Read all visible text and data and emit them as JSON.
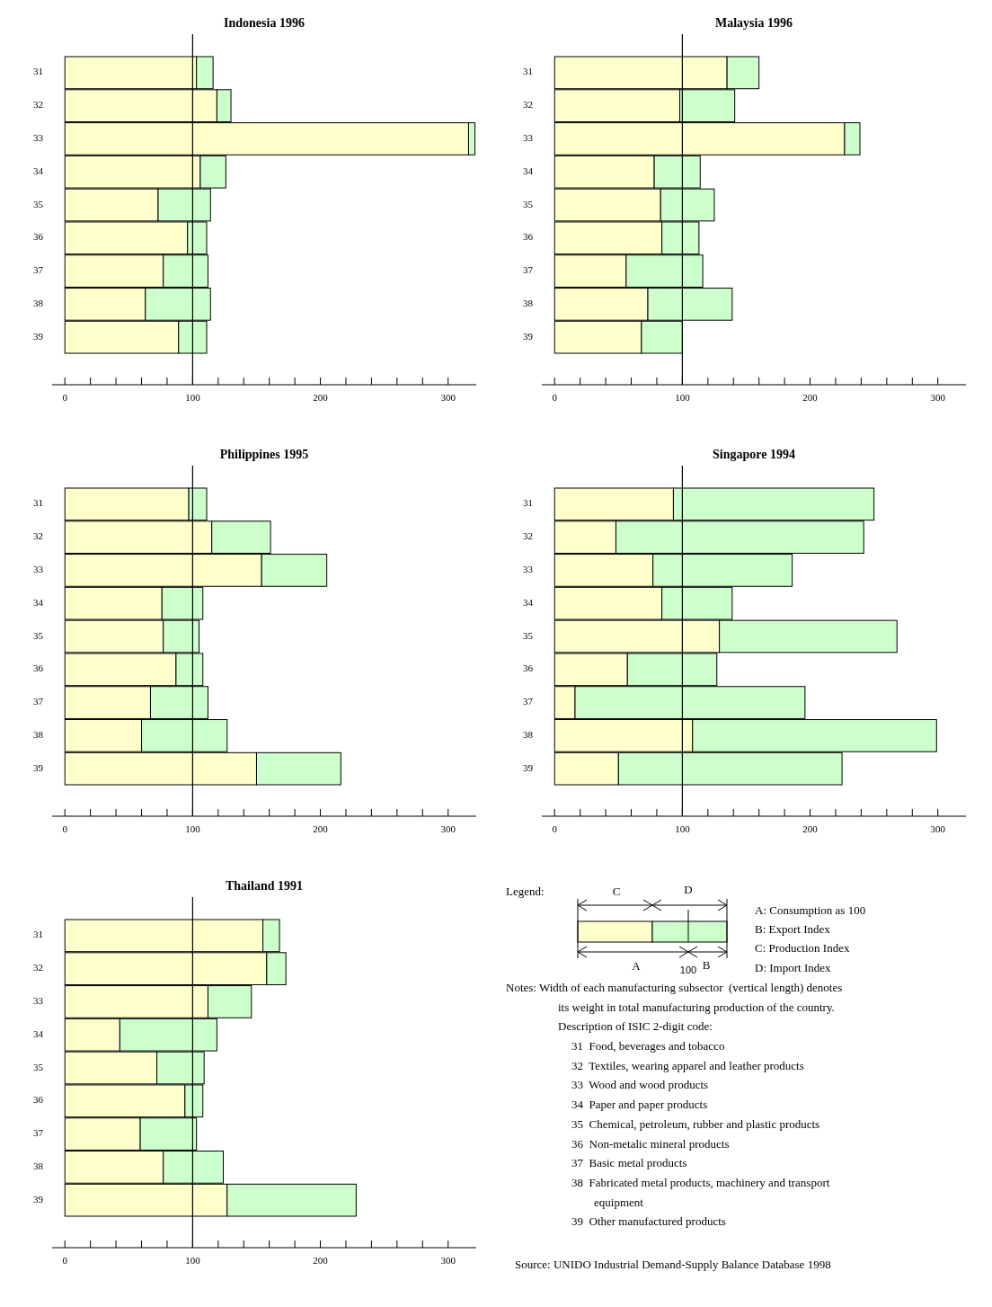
{
  "chart_data": [
    {
      "type": "bar",
      "title": "Indonesia 1996",
      "orientation": "horizontal",
      "stacked": true,
      "categories": [
        "31",
        "32",
        "33",
        "34",
        "35",
        "36",
        "37",
        "38",
        "39"
      ],
      "series": [
        {
          "color": "#ffffcc",
          "values": [
            103,
            119,
            316,
            106,
            73,
            96,
            77,
            63,
            89
          ]
        },
        {
          "color": "#ccffcc",
          "values": [
            13,
            11,
            5,
            20,
            41,
            15,
            35,
            51,
            22
          ]
        }
      ],
      "xlim": [
        -10,
        322
      ],
      "xticks": [
        0,
        {
          "value": 20,
          "label": null
        },
        {
          "value": 40,
          "label": null
        },
        {
          "value": 60,
          "label": null
        },
        {
          "value": 80,
          "label": null
        },
        100,
        {
          "value": 120,
          "label": null
        },
        {
          "value": 140,
          "label": null
        },
        {
          "value": 160,
          "label": null
        },
        {
          "value": 180,
          "label": null
        },
        200,
        {
          "value": 220,
          "label": null
        },
        {
          "value": 240,
          "label": null
        },
        {
          "value": 260,
          "label": null
        },
        {
          "value": 280,
          "label": null
        },
        300
      ],
      "ref_lines": [
        {
          "axis": "x",
          "value": 100
        }
      ]
    },
    {
      "type": "bar",
      "title": "Malaysia 1996",
      "orientation": "horizontal",
      "stacked": true,
      "categories": [
        "31",
        "32",
        "33",
        "34",
        "35",
        "36",
        "37",
        "38",
        "39"
      ],
      "series": [
        {
          "color": "#ffffcc",
          "values": [
            135,
            98,
            227,
            78,
            83,
            84,
            56,
            73,
            68
          ]
        },
        {
          "color": "#ccffcc",
          "values": [
            25,
            43,
            12,
            36,
            42,
            29,
            60,
            66,
            32
          ]
        }
      ],
      "xlim": [
        -10,
        322
      ],
      "xticks": [
        0,
        {
          "value": 20,
          "label": null
        },
        {
          "value": 40,
          "label": null
        },
        {
          "value": 60,
          "label": null
        },
        {
          "value": 80,
          "label": null
        },
        100,
        {
          "value": 120,
          "label": null
        },
        {
          "value": 140,
          "label": null
        },
        {
          "value": 160,
          "label": null
        },
        {
          "value": 180,
          "label": null
        },
        200,
        {
          "value": 220,
          "label": null
        },
        {
          "value": 240,
          "label": null
        },
        {
          "value": 260,
          "label": null
        },
        {
          "value": 280,
          "label": null
        },
        300
      ],
      "ref_lines": [
        {
          "axis": "x",
          "value": 100
        }
      ]
    },
    {
      "type": "bar",
      "title": "Philippines 1995",
      "orientation": "horizontal",
      "stacked": true,
      "categories": [
        "31",
        "32",
        "33",
        "34",
        "35",
        "36",
        "37",
        "38",
        "39"
      ],
      "series": [
        {
          "color": "#ffffcc",
          "values": [
            97,
            115,
            154,
            76,
            77,
            87,
            67,
            60,
            150
          ]
        },
        {
          "color": "#ccffcc",
          "values": [
            14,
            46,
            51,
            32,
            28,
            21,
            45,
            67,
            66
          ]
        }
      ],
      "xlim": [
        -10,
        322
      ],
      "xticks": [
        0,
        {
          "value": 20,
          "label": null
        },
        {
          "value": 40,
          "label": null
        },
        {
          "value": 60,
          "label": null
        },
        {
          "value": 80,
          "label": null
        },
        100,
        {
          "value": 120,
          "label": null
        },
        {
          "value": 140,
          "label": null
        },
        {
          "value": 160,
          "label": null
        },
        {
          "value": 180,
          "label": null
        },
        200,
        {
          "value": 220,
          "label": null
        },
        {
          "value": 240,
          "label": null
        },
        {
          "value": 260,
          "label": null
        },
        {
          "value": 280,
          "label": null
        },
        300
      ],
      "ref_lines": [
        {
          "axis": "x",
          "value": 100
        }
      ]
    },
    {
      "type": "bar",
      "title": "Singapore 1994",
      "orientation": "horizontal",
      "stacked": true,
      "categories": [
        "31",
        "32",
        "33",
        "34",
        "35",
        "36",
        "37",
        "38",
        "39"
      ],
      "series": [
        {
          "color": "#ffffcc",
          "values": [
            93,
            48,
            77,
            84,
            129,
            57,
            16,
            108,
            50
          ]
        },
        {
          "color": "#ccffcc",
          "values": [
            157,
            194,
            109,
            55,
            139,
            70,
            180,
            191,
            175
          ]
        }
      ],
      "xlim": [
        -10,
        322
      ],
      "xticks": [
        0,
        {
          "value": 20,
          "label": null
        },
        {
          "value": 40,
          "label": null
        },
        {
          "value": 60,
          "label": null
        },
        {
          "value": 80,
          "label": null
        },
        100,
        {
          "value": 120,
          "label": null
        },
        {
          "value": 140,
          "label": null
        },
        {
          "value": 160,
          "label": null
        },
        {
          "value": 180,
          "label": null
        },
        200,
        {
          "value": 220,
          "label": null
        },
        {
          "value": 240,
          "label": null
        },
        {
          "value": 260,
          "label": null
        },
        {
          "value": 280,
          "label": null
        },
        300
      ],
      "ref_lines": [
        {
          "axis": "x",
          "value": 100
        }
      ]
    },
    {
      "type": "bar",
      "title": "Thailand 1991",
      "orientation": "horizontal",
      "stacked": true,
      "categories": [
        "31",
        "32",
        "33",
        "34",
        "35",
        "36",
        "37",
        "38",
        "39"
      ],
      "series": [
        {
          "color": "#ffffcc",
          "values": [
            155,
            158,
            112,
            43,
            72,
            94,
            59,
            77,
            127
          ]
        },
        {
          "color": "#ccffcc",
          "values": [
            13,
            15,
            34,
            76,
            37,
            14,
            44,
            47,
            101
          ]
        }
      ],
      "xlim": [
        -10,
        322
      ],
      "xticks": [
        0,
        {
          "value": 20,
          "label": null
        },
        {
          "value": 40,
          "label": null
        },
        {
          "value": 60,
          "label": null
        },
        {
          "value": 80,
          "label": null
        },
        100,
        {
          "value": 120,
          "label": null
        },
        {
          "value": 140,
          "label": null
        },
        {
          "value": 160,
          "label": null
        },
        {
          "value": 180,
          "label": null
        },
        200,
        {
          "value": 220,
          "label": null
        },
        {
          "value": 240,
          "label": null
        },
        {
          "value": 260,
          "label": null
        },
        {
          "value": 280,
          "label": null
        },
        300
      ],
      "ref_lines": [
        {
          "axis": "x",
          "value": 100
        }
      ]
    },
    {
      "type": "other",
      "title": "Legend:",
      "annotations": [
        "C",
        "D",
        "A",
        "100",
        "B",
        "A: Consumption as 100",
        "B: Export Index",
        "C: Production Index",
        "D: Import Index",
        "Notes: Width of each manufacturing subsector  (vertical length) denotes",
        "its weight in total manufacturing production of the country.",
        "Description of ISIC 2-digit code:",
        "31  Food, beverages and tobacco",
        "32  Textiles, wearing apparel and leather products",
        "33  Wood and wood products",
        "34  Paper and paper products",
        "35  Chemical, petroleum, rubber and plastic products",
        "36  Non-metalic mineral products",
        "37  Basic metal products",
        "38  Fabricated metal products, machinery and transport",
        "equipment",
        "39  Other manufactured products",
        "Source: UNIDO Industrial Demand-Supply Balance Database 1998"
      ]
    }
  ]
}
